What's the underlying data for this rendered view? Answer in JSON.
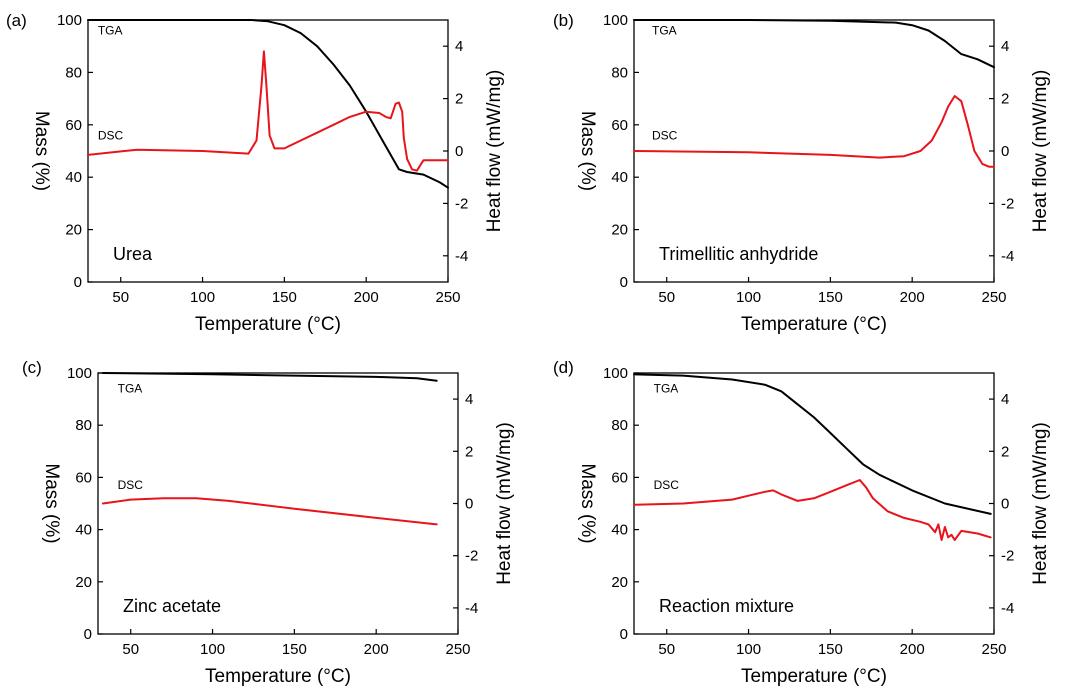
{
  "figure": {
    "background": "#ffffff"
  },
  "colors": {
    "tga": "#000000",
    "dsc": "#e8141b"
  },
  "chart_data": [
    {
      "type": "line",
      "panel_label": "(a)",
      "sample": "Urea",
      "xlabel": "Temperature (°C)",
      "ylabel": "Mass (%)",
      "y2label": "Heat flow (mW/mg)",
      "xlim": [
        30,
        250
      ],
      "ylim": [
        0,
        100
      ],
      "y2lim": [
        -5,
        5
      ],
      "xticks": [
        50,
        100,
        150,
        200,
        250
      ],
      "yticks": [
        0,
        20,
        40,
        60,
        80,
        100
      ],
      "y2ticks": [
        -4,
        -2,
        0,
        2,
        4
      ],
      "series": [
        {
          "name": "TGA",
          "axis": "left",
          "color": "#000000",
          "label_at": [
            36,
            96
          ],
          "x": [
            30,
            60,
            100,
            130,
            140,
            150,
            160,
            170,
            180,
            190,
            200,
            210,
            220,
            225,
            235,
            245,
            250
          ],
          "y": [
            100,
            100,
            100,
            100,
            99.5,
            98,
            95,
            90,
            83,
            75,
            65,
            54,
            43,
            42,
            41,
            38,
            36
          ]
        },
        {
          "name": "DSC",
          "axis": "right",
          "color": "#e8141b",
          "label_at": [
            36,
            0.6
          ],
          "x": [
            30,
            60,
            100,
            128,
            133,
            136,
            137.5,
            139,
            141,
            144,
            150,
            160,
            170,
            180,
            190,
            200,
            208,
            212,
            215,
            218,
            220,
            222,
            223,
            225,
            228,
            231,
            235,
            238,
            250
          ],
          "y": [
            -0.15,
            0.05,
            0.0,
            -0.1,
            0.4,
            2.5,
            3.8,
            2.5,
            0.6,
            0.1,
            0.1,
            0.4,
            0.7,
            1.0,
            1.3,
            1.5,
            1.45,
            1.3,
            1.25,
            1.8,
            1.85,
            1.5,
            0.5,
            -0.3,
            -0.7,
            -0.75,
            -0.35,
            -0.35,
            -0.35
          ]
        }
      ]
    },
    {
      "type": "line",
      "panel_label": "(b)",
      "sample": "Trimellitic anhydride",
      "xlabel": "Temperature (°C)",
      "ylabel": "Mass (%)",
      "y2label": "Heat flow (mW/mg)",
      "xlim": [
        30,
        250
      ],
      "ylim": [
        0,
        100
      ],
      "y2lim": [
        -5,
        5
      ],
      "xticks": [
        50,
        100,
        150,
        200,
        250
      ],
      "yticks": [
        0,
        20,
        40,
        60,
        80,
        100
      ],
      "y2ticks": [
        -4,
        -2,
        0,
        2,
        4
      ],
      "series": [
        {
          "name": "TGA",
          "axis": "left",
          "color": "#000000",
          "label_at": [
            41,
            96
          ],
          "x": [
            30,
            100,
            150,
            190,
            200,
            210,
            220,
            230,
            240,
            250
          ],
          "y": [
            100,
            100,
            99.7,
            99,
            98,
            96,
            92,
            87,
            85,
            82
          ]
        },
        {
          "name": "DSC",
          "axis": "right",
          "color": "#e8141b",
          "label_at": [
            41,
            0.6
          ],
          "x": [
            30,
            100,
            150,
            180,
            195,
            205,
            212,
            218,
            222,
            226,
            230,
            234,
            238,
            243,
            247,
            250
          ],
          "y": [
            0.0,
            -0.05,
            -0.15,
            -0.25,
            -0.2,
            0.0,
            0.4,
            1.1,
            1.7,
            2.1,
            1.9,
            1.0,
            0.0,
            -0.5,
            -0.6,
            -0.6
          ]
        }
      ]
    },
    {
      "type": "line",
      "panel_label": "(c)",
      "sample": "Zinc acetate",
      "xlabel": "Temperature (°C)",
      "ylabel": "Mass (%)",
      "y2label": "Heat flow (mW/mg)",
      "xlim": [
        30,
        250
      ],
      "ylim": [
        0,
        100
      ],
      "y2lim": [
        -5,
        5
      ],
      "xticks": [
        50,
        100,
        150,
        200,
        250
      ],
      "yticks": [
        0,
        20,
        40,
        60,
        80,
        100
      ],
      "y2ticks": [
        -4,
        -2,
        0,
        2,
        4
      ],
      "series": [
        {
          "name": "TGA",
          "axis": "left",
          "color": "#000000",
          "label_at": [
            42,
            94
          ],
          "x": [
            33,
            100,
            150,
            200,
            225,
            237
          ],
          "y": [
            100,
            99.5,
            99,
            98.5,
            98,
            97
          ]
        },
        {
          "name": "DSC",
          "axis": "right",
          "color": "#e8141b",
          "label_at": [
            42,
            0.7
          ],
          "x": [
            33,
            50,
            70,
            90,
            110,
            150,
            200,
            237
          ],
          "y": [
            0.0,
            0.15,
            0.2,
            0.2,
            0.1,
            -0.2,
            -0.55,
            -0.8
          ]
        }
      ]
    },
    {
      "type": "line",
      "panel_label": "(d)",
      "sample": "Reaction mixture",
      "xlabel": "Temperature (°C)",
      "ylabel": "Mass (%)",
      "y2label": "Heat flow (mW/mg)",
      "xlim": [
        30,
        250
      ],
      "ylim": [
        0,
        100
      ],
      "y2lim": [
        -5,
        5
      ],
      "xticks": [
        50,
        100,
        150,
        200,
        250
      ],
      "yticks": [
        0,
        20,
        40,
        60,
        80,
        100
      ],
      "y2ticks": [
        -4,
        -2,
        0,
        2,
        4
      ],
      "series": [
        {
          "name": "TGA",
          "axis": "left",
          "color": "#000000",
          "label_at": [
            42,
            94
          ],
          "x": [
            30,
            60,
            90,
            110,
            120,
            130,
            140,
            150,
            160,
            170,
            180,
            200,
            220,
            248
          ],
          "y": [
            99.5,
            99,
            97.5,
            95.5,
            93,
            88,
            83,
            77,
            71,
            65,
            61,
            55,
            50,
            46
          ]
        },
        {
          "name": "DSC",
          "axis": "right",
          "color": "#e8141b",
          "label_at": [
            42,
            0.7
          ],
          "x": [
            30,
            60,
            90,
            100,
            110,
            115,
            120,
            130,
            140,
            150,
            160,
            168,
            172,
            176,
            185,
            195,
            205,
            210,
            214,
            216,
            218,
            220,
            222,
            224,
            226,
            230,
            240,
            248
          ],
          "y": [
            -0.05,
            0.0,
            0.15,
            0.3,
            0.45,
            0.5,
            0.35,
            0.1,
            0.2,
            0.45,
            0.7,
            0.9,
            0.6,
            0.2,
            -0.3,
            -0.55,
            -0.7,
            -0.8,
            -1.1,
            -0.8,
            -1.4,
            -0.9,
            -1.3,
            -1.2,
            -1.4,
            -1.05,
            -1.15,
            -1.3
          ]
        }
      ]
    }
  ]
}
